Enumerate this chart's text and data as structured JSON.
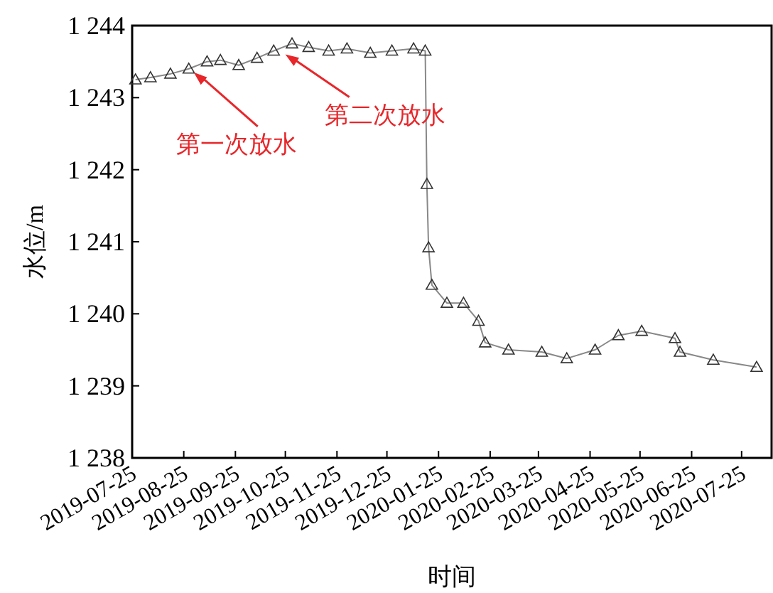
{
  "chart_data": {
    "type": "line",
    "xlabel": "时间",
    "ylabel": "水位/m",
    "x": [
      "2019-07-27",
      "2019-08-05",
      "2019-08-17",
      "2019-08-28",
      "2019-09-08",
      "2019-09-16",
      "2019-09-27",
      "2019-10-08",
      "2019-10-18",
      "2019-10-29",
      "2019-11-08",
      "2019-11-20",
      "2019-12-01",
      "2019-12-15",
      "2019-12-28",
      "2020-01-10",
      "2020-01-17",
      "2020-01-18",
      "2020-01-19",
      "2020-01-21",
      "2020-01-30",
      "2020-02-09",
      "2020-02-18",
      "2020-02-22",
      "2020-03-07",
      "2020-03-27",
      "2020-04-11",
      "2020-04-28",
      "2020-05-12",
      "2020-05-26",
      "2020-06-15",
      "2020-06-18",
      "2020-07-08",
      "2020-08-03"
    ],
    "series": [
      {
        "color": "#333333",
        "values": [
          1243.25,
          1243.28,
          1243.33,
          1243.4,
          1243.5,
          1243.52,
          1243.45,
          1243.55,
          1243.65,
          1243.75,
          1243.7,
          1243.65,
          1243.68,
          1243.62,
          1243.65,
          1243.68,
          1243.65,
          1241.8,
          1240.92,
          1240.4,
          1240.15,
          1240.15,
          1239.9,
          1239.6,
          1239.5,
          1239.47,
          1239.38,
          1239.5,
          1239.7,
          1239.76,
          1239.66,
          1239.47,
          1239.36,
          1239.26
        ]
      }
    ],
    "marker": "triangle",
    "grid": false,
    "xlim": [
      "2019-07-25",
      "2020-08-12"
    ],
    "ylim": [
      1238,
      1244
    ],
    "xticks": [
      "2019-07-25",
      "2019-08-25",
      "2019-09-25",
      "2019-10-25",
      "2019-11-25",
      "2019-12-25",
      "2020-01-25",
      "2020-02-25",
      "2020-03-25",
      "2020-04-25",
      "2020-05-25",
      "2020-06-25",
      "2020-07-25"
    ],
    "yticks": [
      {
        "value": 1238,
        "label": "1 238"
      },
      {
        "value": 1239,
        "label": "1 239"
      },
      {
        "value": 1240,
        "label": "1 240"
      },
      {
        "value": 1241,
        "label": "1 241"
      },
      {
        "value": 1242,
        "label": "1 242"
      },
      {
        "value": 1243,
        "label": "1 243"
      },
      {
        "value": 1244,
        "label": "1 244"
      }
    ],
    "annotations": [
      {
        "text": "第一次放水",
        "x": "2019-08-31",
        "y": 1243.35
      },
      {
        "text": "第二次放水",
        "x": "2019-10-25",
        "y": 1243.6
      }
    ]
  }
}
